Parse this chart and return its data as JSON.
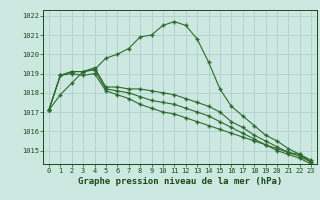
{
  "x": [
    0,
    1,
    2,
    3,
    4,
    5,
    6,
    7,
    8,
    9,
    10,
    11,
    12,
    13,
    14,
    15,
    16,
    17,
    18,
    19,
    20,
    21,
    22,
    23
  ],
  "line1": [
    1017.1,
    1017.9,
    1018.5,
    1019.1,
    1019.2,
    1019.8,
    1020.0,
    1020.3,
    1020.9,
    1021.0,
    1021.5,
    1021.7,
    1021.5,
    1020.8,
    1019.6,
    1018.2,
    1017.3,
    1016.8,
    1016.3,
    1015.8,
    1015.5,
    1015.1,
    1014.8,
    1014.5
  ],
  "line2": [
    1017.1,
    1018.9,
    1019.1,
    1019.1,
    1019.3,
    1018.3,
    1018.3,
    1018.2,
    1018.2,
    1018.1,
    1018.0,
    1017.9,
    1017.7,
    1017.5,
    1017.3,
    1017.0,
    1016.5,
    1016.2,
    1015.8,
    1015.5,
    1015.2,
    1014.9,
    1014.8,
    1014.4
  ],
  "line3": [
    1017.1,
    1018.9,
    1019.1,
    1019.1,
    1019.2,
    1018.2,
    1018.1,
    1018.0,
    1017.8,
    1017.6,
    1017.5,
    1017.4,
    1017.2,
    1017.0,
    1016.8,
    1016.5,
    1016.2,
    1015.9,
    1015.6,
    1015.3,
    1015.0,
    1014.8,
    1014.6,
    1014.3
  ],
  "line4": [
    1017.1,
    1018.9,
    1019.0,
    1018.9,
    1019.0,
    1018.1,
    1017.9,
    1017.7,
    1017.4,
    1017.2,
    1017.0,
    1016.9,
    1016.7,
    1016.5,
    1016.3,
    1016.1,
    1015.9,
    1015.7,
    1015.5,
    1015.3,
    1015.1,
    1014.9,
    1014.7,
    1014.4
  ],
  "line_color": "#2d6a2d",
  "bg_color": "#cce8e0",
  "grid_color": "#aacccc",
  "ylim": [
    1014.3,
    1022.3
  ],
  "yticks": [
    1015,
    1016,
    1017,
    1018,
    1019,
    1020,
    1021,
    1022
  ],
  "xticks": [
    0,
    1,
    2,
    3,
    4,
    5,
    6,
    7,
    8,
    9,
    10,
    11,
    12,
    13,
    14,
    15,
    16,
    17,
    18,
    19,
    20,
    21,
    22,
    23
  ],
  "xlabel": "Graphe pression niveau de la mer (hPa)",
  "title_color": "#1a4a1a",
  "tick_fontsize": 5.0,
  "xlabel_fontsize": 6.5
}
